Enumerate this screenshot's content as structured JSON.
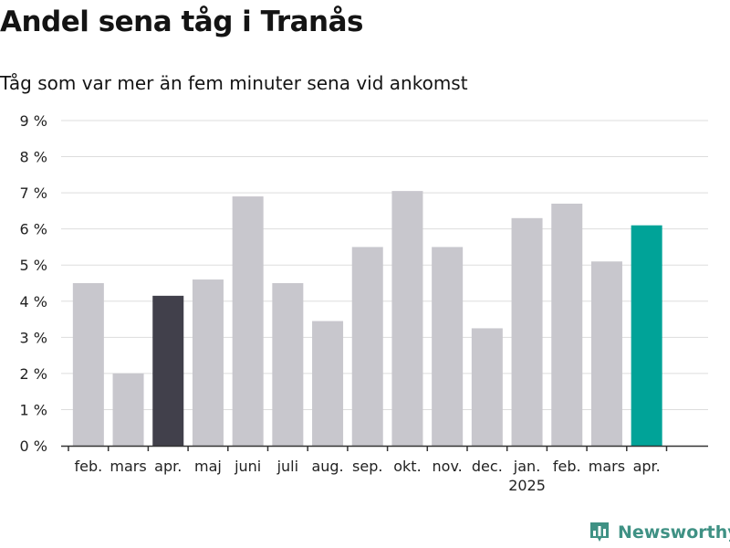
{
  "title": "Andel sena tåg i Tranås",
  "subtitle": "Tåg som var mer än fem minuter sena vid ankomst",
  "brand": {
    "name": "Newsworthy",
    "icon": "newsworthy-bar-chart-icon"
  },
  "colors": {
    "default_bar": "#c8c7cd",
    "highlight_bar": "#41404b",
    "latest_bar": "#00a398",
    "grid": "#dddddd",
    "axis": "#333333",
    "brand": "#3f9184"
  },
  "chart_data": {
    "type": "bar",
    "title": "Andel sena tåg i Tranås",
    "subtitle": "Tåg som var mer än fem minuter sena vid ankomst",
    "xlabel": "",
    "ylabel": "",
    "ylim": [
      0,
      9
    ],
    "y_ticks": [
      "0 %",
      "1 %",
      "2 %",
      "3 %",
      "4 %",
      "5 %",
      "6 %",
      "7 %",
      "8 %",
      "9 %"
    ],
    "grid": true,
    "year_label": "2025",
    "year_label_under": "jan.",
    "categories": [
      "feb.",
      "mars",
      "apr.",
      "maj",
      "juni",
      "juli",
      "aug.",
      "sep.",
      "okt.",
      "nov.",
      "dec.",
      "jan.",
      "feb.",
      "mars",
      "apr."
    ],
    "values": [
      4.5,
      2.0,
      4.15,
      4.6,
      6.9,
      4.5,
      3.45,
      5.5,
      7.05,
      5.5,
      3.25,
      6.3,
      6.7,
      5.1,
      6.1
    ],
    "bar_roles": [
      "default",
      "default",
      "highlight",
      "default",
      "default",
      "default",
      "default",
      "default",
      "default",
      "default",
      "default",
      "default",
      "default",
      "default",
      "latest"
    ]
  }
}
